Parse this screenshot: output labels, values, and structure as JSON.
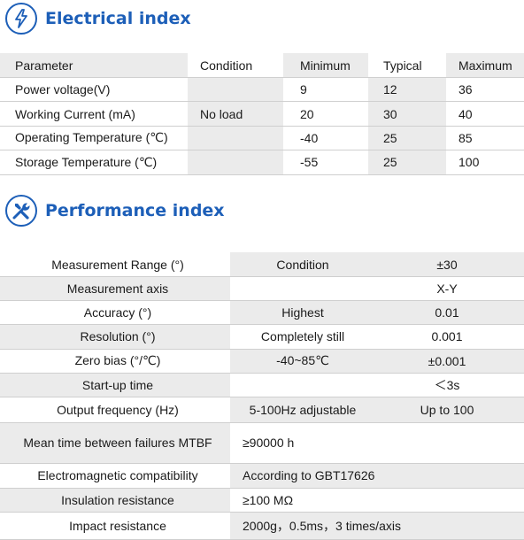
{
  "electrical": {
    "title": "Electrical index",
    "icon": "lightning-icon",
    "headers": [
      "Parameter",
      "Condition",
      "Minimum",
      "Typical",
      "Maximum"
    ],
    "rows": [
      [
        "Power voltage(V)",
        "",
        "9",
        "12",
        "36"
      ],
      [
        "Working Current (mA)",
        "No load",
        "20",
        "30",
        "40"
      ],
      [
        "Operating Temperature (℃)",
        "",
        "-40",
        "25",
        "85"
      ],
      [
        "Storage Temperature (℃)",
        "",
        "-55",
        "25",
        "100"
      ]
    ]
  },
  "performance": {
    "title": "Performance index",
    "icon": "tools-icon",
    "rows": [
      {
        "label": "Measurement Range (°)",
        "condition": "Condition",
        "value": "±30"
      },
      {
        "label": "Measurement axis",
        "condition": "",
        "value": "X-Y"
      },
      {
        "label": "Accuracy (°)",
        "condition": "Highest",
        "value": "0.01"
      },
      {
        "label": "Resolution (°)",
        "condition": "Completely still",
        "value": "0.001"
      },
      {
        "label": "Zero bias (°/℃)",
        "condition": "-40~85℃",
        "value": "±0.001"
      },
      {
        "label": "Start-up time",
        "condition": "",
        "value": "＜3s"
      },
      {
        "label": "Output frequency (Hz)",
        "condition": "5-100Hz adjustable",
        "value": "Up to 100"
      },
      {
        "label": "Mean time between failures MTBF",
        "wide": "≥90000 h"
      },
      {
        "label": "Electromagnetic compatibility",
        "wide": "According to GBT17626"
      },
      {
        "label": "Insulation resistance",
        "wide": "≥100 MΩ"
      },
      {
        "label": "Impact resistance",
        "wide": "2000g，0.5ms，3 times/axis"
      }
    ]
  },
  "colors": {
    "accent": "#1d5fb8",
    "shade": "#ebebeb"
  }
}
